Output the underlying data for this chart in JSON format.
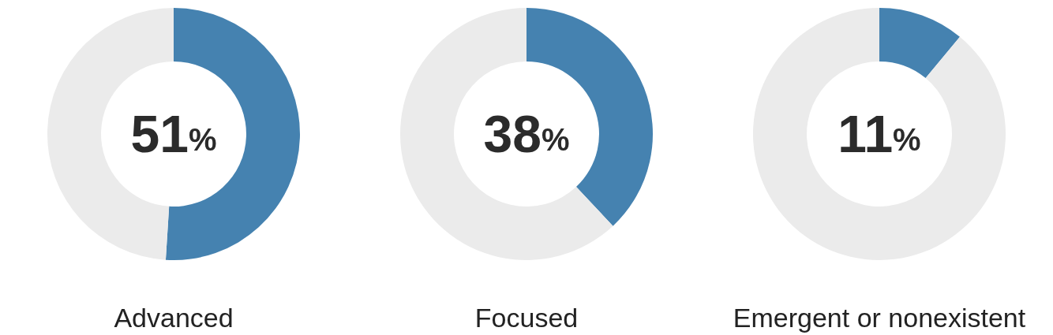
{
  "chart_data": [
    {
      "type": "donut",
      "title": "Advanced",
      "categories": [
        null,
        null
      ],
      "values": [
        51,
        49
      ],
      "colors": [
        "#4582b0",
        "#ebebeb"
      ],
      "value_labels": [
        "51%",
        null
      ]
    },
    {
      "type": "donut",
      "title": "Focused",
      "categories": [
        null,
        null
      ],
      "values": [
        38,
        62
      ],
      "colors": [
        "#4582b0",
        "#ebebeb"
      ],
      "value_labels": [
        "38%",
        null
      ]
    },
    {
      "type": "donut",
      "title": "Emergent or nonexistent",
      "categories": [
        null,
        null
      ],
      "values": [
        11,
        89
      ],
      "colors": [
        "#4582b0",
        "#ebebeb"
      ],
      "value_labels": [
        "11%",
        null
      ]
    }
  ]
}
